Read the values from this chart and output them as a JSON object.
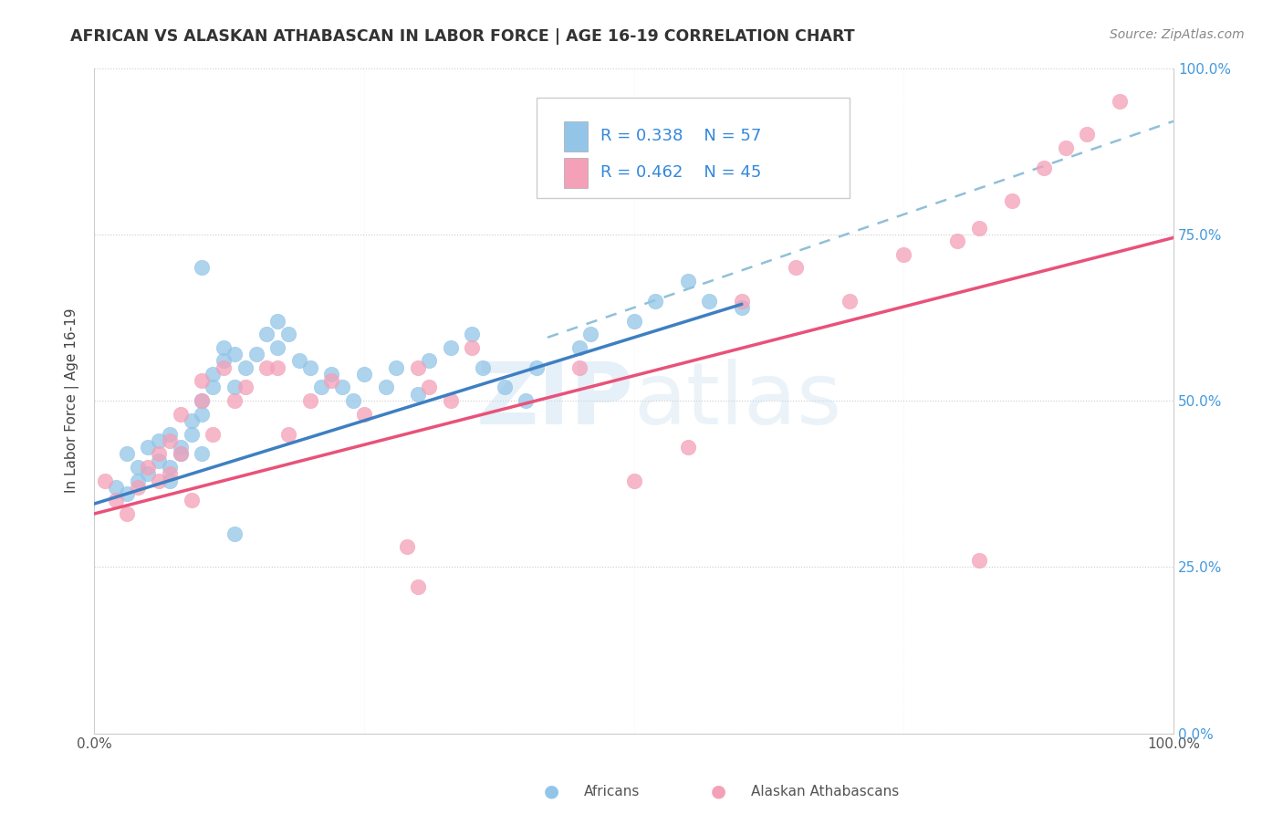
{
  "title": "AFRICAN VS ALASKAN ATHABASCAN IN LABOR FORCE | AGE 16-19 CORRELATION CHART",
  "source": "Source: ZipAtlas.com",
  "ylabel": "In Labor Force | Age 16-19",
  "xlim": [
    0,
    1.0
  ],
  "ylim": [
    0,
    1.0
  ],
  "africans_R": 0.338,
  "africans_N": 57,
  "athabascan_R": 0.462,
  "athabascan_N": 45,
  "africans_color": "#92C5E8",
  "athabascan_color": "#F4A0B8",
  "africans_line_color": "#3E7FC1",
  "athabascan_line_color": "#E8527A",
  "dashed_line_color": "#90C0D8",
  "blue_line_x": [
    0.0,
    0.6
  ],
  "blue_line_y": [
    0.345,
    0.645
  ],
  "pink_line_x": [
    0.0,
    1.0
  ],
  "pink_line_y": [
    0.33,
    0.745
  ],
  "dashed_line_x": [
    0.42,
    1.0
  ],
  "dashed_line_y": [
    0.595,
    0.92
  ],
  "africans_x": [
    0.02,
    0.03,
    0.03,
    0.04,
    0.04,
    0.05,
    0.05,
    0.06,
    0.06,
    0.07,
    0.07,
    0.07,
    0.08,
    0.08,
    0.09,
    0.09,
    0.1,
    0.1,
    0.1,
    0.11,
    0.11,
    0.12,
    0.12,
    0.13,
    0.13,
    0.14,
    0.15,
    0.16,
    0.17,
    0.17,
    0.18,
    0.19,
    0.2,
    0.21,
    0.22,
    0.23,
    0.24,
    0.25,
    0.27,
    0.28,
    0.3,
    0.31,
    0.33,
    0.35,
    0.36,
    0.38,
    0.4,
    0.41,
    0.45,
    0.46,
    0.5,
    0.52,
    0.55,
    0.57,
    0.6,
    0.1,
    0.13
  ],
  "africans_y": [
    0.37,
    0.36,
    0.42,
    0.4,
    0.38,
    0.39,
    0.43,
    0.41,
    0.44,
    0.38,
    0.4,
    0.45,
    0.42,
    0.43,
    0.47,
    0.45,
    0.5,
    0.48,
    0.42,
    0.54,
    0.52,
    0.58,
    0.56,
    0.57,
    0.52,
    0.55,
    0.57,
    0.6,
    0.62,
    0.58,
    0.6,
    0.56,
    0.55,
    0.52,
    0.54,
    0.52,
    0.5,
    0.54,
    0.52,
    0.55,
    0.51,
    0.56,
    0.58,
    0.6,
    0.55,
    0.52,
    0.5,
    0.55,
    0.58,
    0.6,
    0.62,
    0.65,
    0.68,
    0.65,
    0.64,
    0.7,
    0.3
  ],
  "athabascan_x": [
    0.01,
    0.02,
    0.03,
    0.04,
    0.05,
    0.06,
    0.06,
    0.07,
    0.07,
    0.08,
    0.08,
    0.09,
    0.1,
    0.1,
    0.11,
    0.12,
    0.13,
    0.14,
    0.16,
    0.17,
    0.18,
    0.2,
    0.22,
    0.25,
    0.29,
    0.3,
    0.31,
    0.33,
    0.35,
    0.45,
    0.5,
    0.55,
    0.6,
    0.65,
    0.7,
    0.75,
    0.8,
    0.82,
    0.85,
    0.88,
    0.9,
    0.92,
    0.95,
    0.82,
    0.3
  ],
  "athabascan_y": [
    0.38,
    0.35,
    0.33,
    0.37,
    0.4,
    0.42,
    0.38,
    0.44,
    0.39,
    0.48,
    0.42,
    0.35,
    0.5,
    0.53,
    0.45,
    0.55,
    0.5,
    0.52,
    0.55,
    0.55,
    0.45,
    0.5,
    0.53,
    0.48,
    0.28,
    0.55,
    0.52,
    0.5,
    0.58,
    0.55,
    0.38,
    0.43,
    0.65,
    0.7,
    0.65,
    0.72,
    0.74,
    0.76,
    0.8,
    0.85,
    0.88,
    0.9,
    0.95,
    0.26,
    0.22
  ]
}
